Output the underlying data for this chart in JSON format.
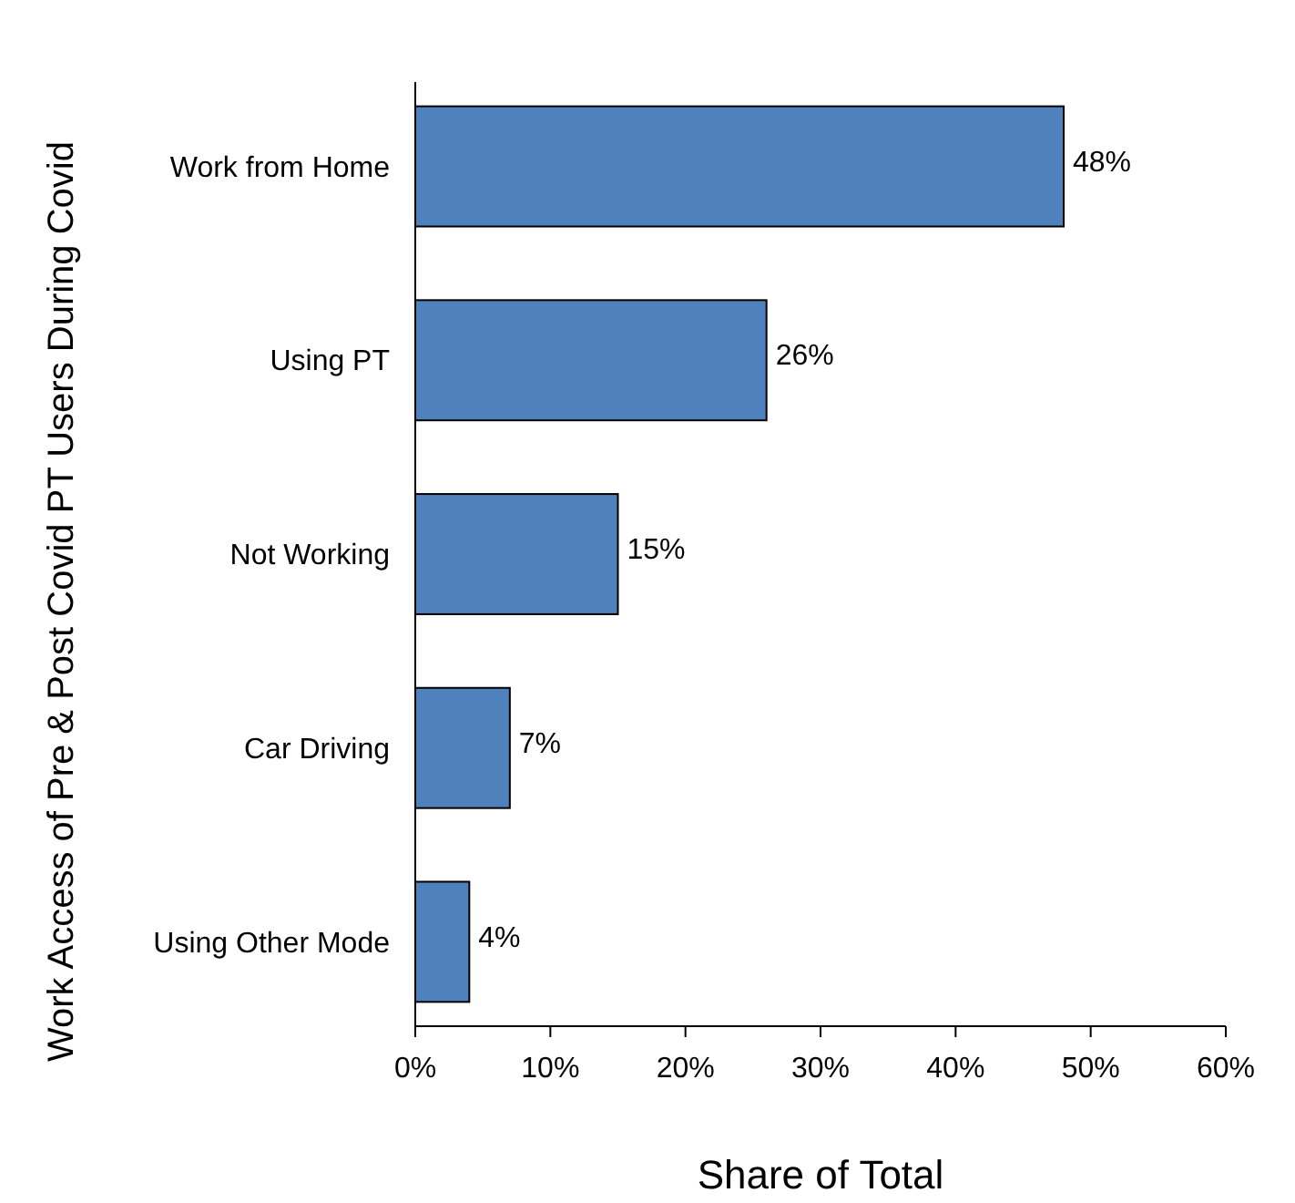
{
  "chart_data": {
    "type": "bar",
    "orientation": "horizontal",
    "ylabel": "Work Access of Pre & Post Covid PT Users During Covid",
    "xlabel": "Share of Total",
    "categories": [
      "Work from Home",
      "Using PT",
      "Not Working",
      "Car Driving",
      "Using Other Mode"
    ],
    "values": [
      48,
      26,
      15,
      7,
      4
    ],
    "value_labels": [
      "48%",
      "26%",
      "15%",
      "7%",
      "4%"
    ],
    "color": "#4f81bd",
    "xlim": [
      0,
      60
    ],
    "xticks": [
      {
        "value": 0,
        "label": "0%"
      },
      {
        "value": 10,
        "label": "10%"
      },
      {
        "value": 20,
        "label": "20%"
      },
      {
        "value": 30,
        "label": "30%"
      },
      {
        "value": 40,
        "label": "40%"
      },
      {
        "value": 50,
        "label": "50%"
      },
      {
        "value": 60,
        "label": "60%"
      }
    ],
    "grid": false
  }
}
